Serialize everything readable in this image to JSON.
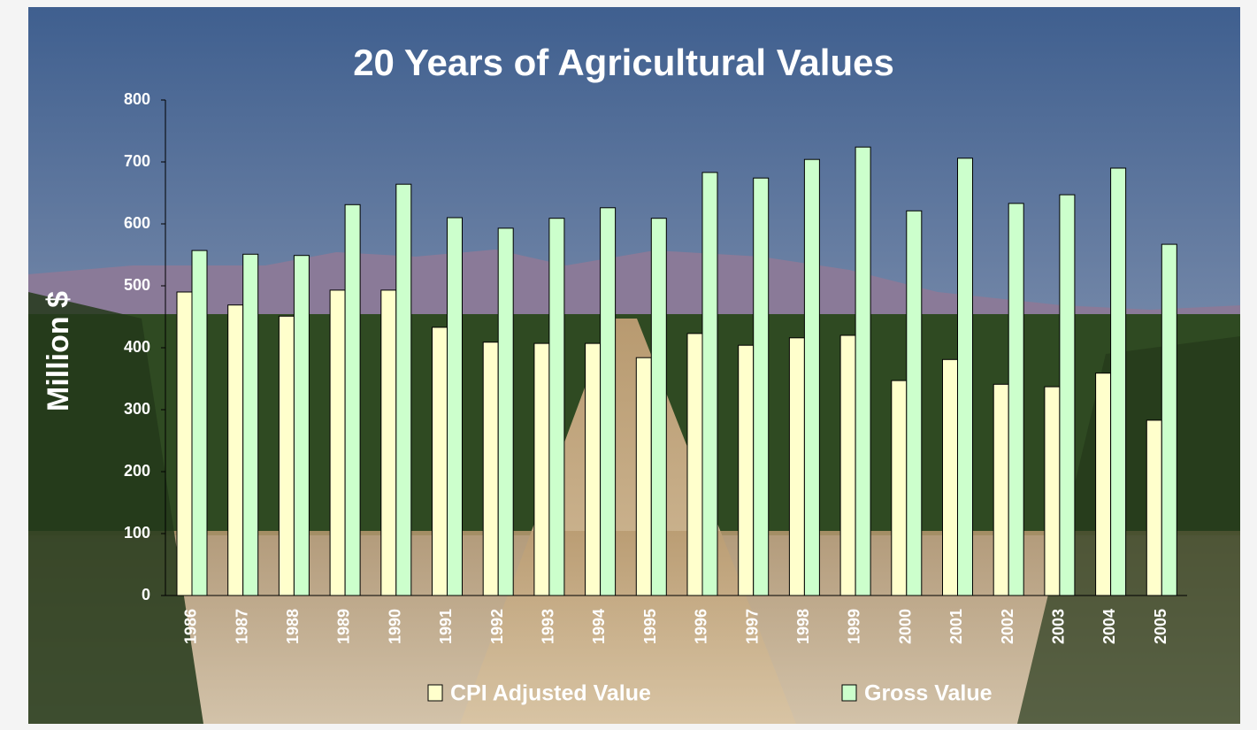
{
  "chart_data": {
    "type": "bar",
    "title": "20 Years of Agricultural Values",
    "y_label": "Million $",
    "categories": [
      "1986",
      "1987",
      "1988",
      "1989",
      "1990",
      "1991",
      "1992",
      "1993",
      "1994",
      "1995",
      "1996",
      "1997",
      "1998",
      "1999",
      "2000",
      "2001",
      "2002",
      "2003",
      "2004",
      "2005"
    ],
    "series": [
      {
        "name": "CPI Adjusted Value",
        "color": "#ffffcc",
        "values": [
          490,
          469,
          451,
          493,
          493,
          433,
          409,
          407,
          407,
          384,
          423,
          404,
          416,
          420,
          347,
          381,
          341,
          337,
          359,
          283
        ]
      },
      {
        "name": "Gross Value",
        "color": "#ccffcc",
        "values": [
          557,
          551,
          549,
          631,
          664,
          610,
          593,
          609,
          626,
          609,
          683,
          674,
          704,
          724,
          621,
          706,
          633,
          647,
          690,
          567
        ]
      }
    ],
    "ylim": [
      0,
      800
    ],
    "yticks": [
      0,
      100,
      200,
      300,
      400,
      500,
      600,
      700,
      800
    ]
  }
}
